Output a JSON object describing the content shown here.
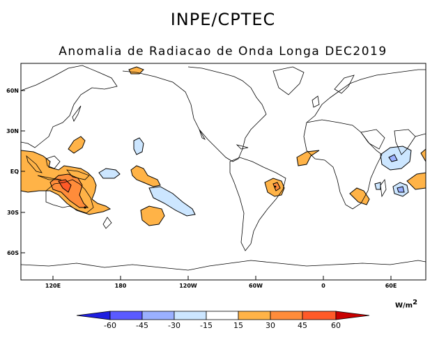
{
  "header": {
    "institution": "INPE/CPTEC",
    "subtitle": "Anomalia de Radiacao de Onda Longa DEC2019"
  },
  "map": {
    "lat_labels": [
      "60N",
      "30N",
      "EQ",
      "30S",
      "60S"
    ],
    "lon_labels": [
      "120E",
      "180",
      "120W",
      "60W",
      "0",
      "60E"
    ],
    "anomaly_regions": [
      {
        "name": "maritime-continent-positive",
        "class": "30 to 45"
      },
      {
        "name": "north-australia-positive-core",
        "class": "45 to 60"
      },
      {
        "name": "south-pacific-negative",
        "class": "-15 to -30"
      },
      {
        "name": "east-africa-negative",
        "class": "-15 to -45"
      },
      {
        "name": "brazil-positive",
        "class": "15 to 45"
      }
    ]
  },
  "colorbar": {
    "labels": [
      "-60",
      "-45",
      "-30",
      "-15",
      "15",
      "30",
      "45",
      "60"
    ],
    "colors": [
      "#1e1ee0",
      "#5a5aff",
      "#9ab0ff",
      "#cce6ff",
      "#ffffff",
      "#ffb347",
      "#ff8c3a",
      "#ff5a28",
      "#c80000"
    ],
    "units": "W/m",
    "units_exp": "2"
  }
}
